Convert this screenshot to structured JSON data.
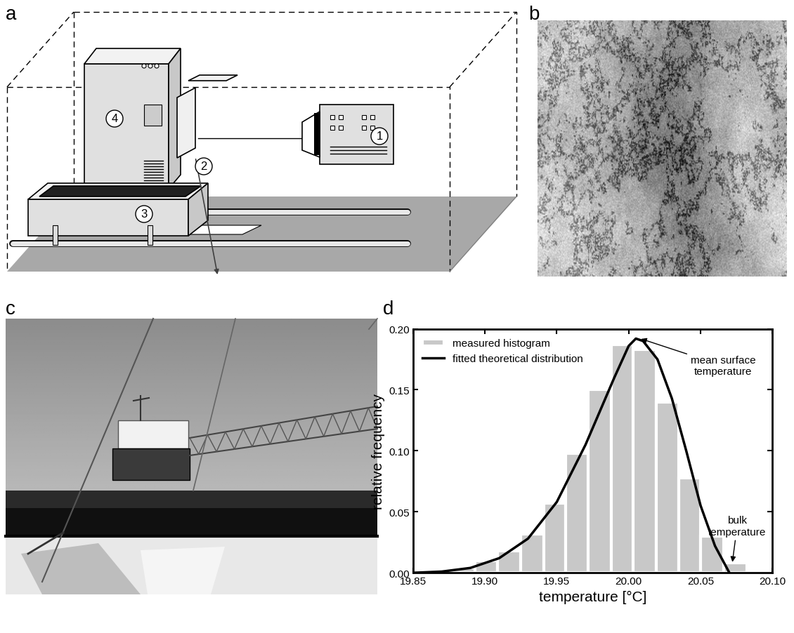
{
  "panel_labels": [
    "a",
    "b",
    "c",
    "d"
  ],
  "diagram": {
    "components": [
      "1",
      "2",
      "3",
      "4"
    ]
  },
  "chart_data": {
    "type": "histogram",
    "xlabel": "temperature [°C]",
    "ylabel": "relative frequency",
    "bins": [
      19.877,
      19.893,
      19.909,
      19.925,
      19.941,
      19.956,
      19.972,
      19.988,
      20.003,
      20.019,
      20.035,
      20.05,
      20.066,
      20.082,
      20.098
    ],
    "xlim": [
      19.85,
      20.1
    ],
    "ylim": [
      0.0,
      0.2
    ],
    "xticks": [
      {
        "value": 19.85,
        "label": "19.85"
      },
      {
        "value": 19.9,
        "label": "19.90"
      },
      {
        "value": 19.95,
        "label": "19.95"
      },
      {
        "value": 20.0,
        "label": "20.00"
      },
      {
        "value": 20.05,
        "label": "20.05"
      },
      {
        "value": 20.1,
        "label": "20.10"
      }
    ],
    "yticks": [
      {
        "value": 0.0,
        "label": "0.00"
      },
      {
        "value": 0.05,
        "label": "0.05"
      },
      {
        "value": 0.1,
        "label": "0.10"
      },
      {
        "value": 0.15,
        "label": "0.15"
      },
      {
        "value": 0.2,
        "label": "0.20"
      }
    ],
    "grid": false,
    "legend": "upper left",
    "series": [
      {
        "name": "measured histogram",
        "type": "bar",
        "color": "#c8c8c8",
        "values": [
          0.004,
          0.01,
          0.018,
          0.032,
          0.057,
          0.098,
          0.15,
          0.187,
          0.183,
          0.14,
          0.078,
          0.03,
          0.008,
          0.001
        ]
      },
      {
        "name": "fitted theoretical distribution",
        "type": "line",
        "color": "#000000",
        "x": [
          19.85,
          19.87,
          19.89,
          19.91,
          19.93,
          19.95,
          19.97,
          19.99,
          20.0,
          20.005,
          20.01,
          20.02,
          20.03,
          20.04,
          20.05,
          20.06,
          20.07
        ],
        "values": [
          0.0,
          0.001,
          0.004,
          0.012,
          0.028,
          0.058,
          0.105,
          0.16,
          0.186,
          0.192,
          0.19,
          0.175,
          0.143,
          0.1,
          0.055,
          0.022,
          0.0
        ]
      }
    ],
    "annotations": [
      {
        "text": "mean surface\ntemperature",
        "x": 20.008,
        "y": 0.192
      },
      {
        "text": "bulk\ntemperature",
        "x": 20.072,
        "y": 0.008
      }
    ]
  }
}
